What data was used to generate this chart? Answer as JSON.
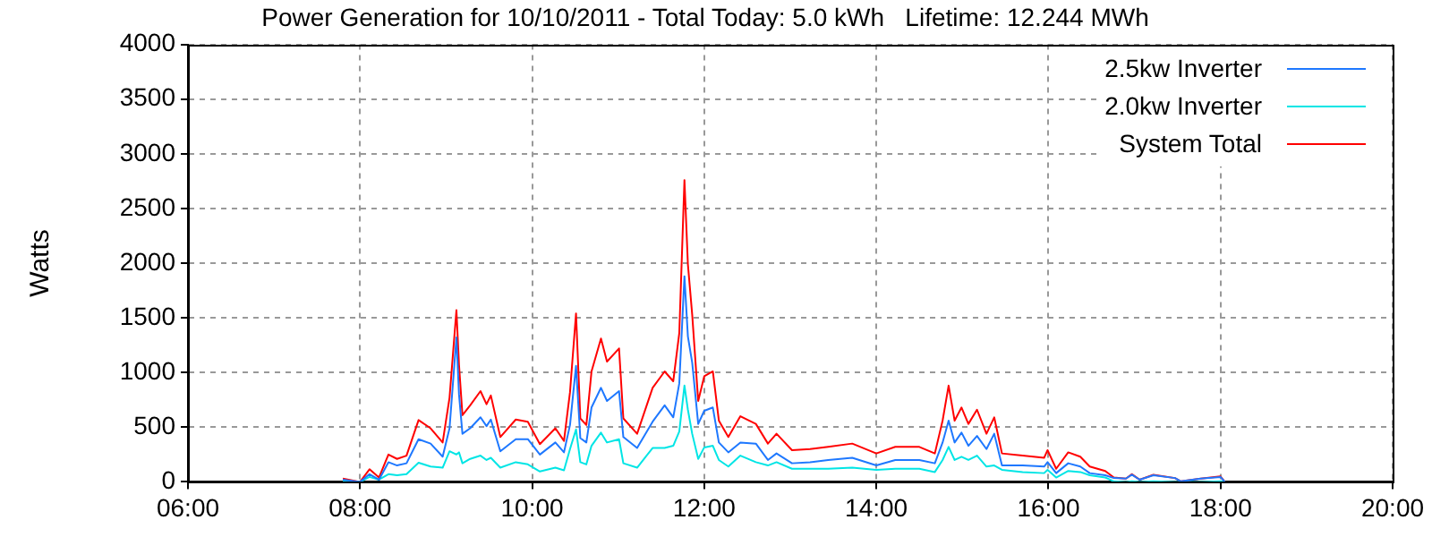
{
  "chart_data": {
    "type": "line",
    "title": "Power Generation for 10/10/2011 - Total Today: 5.0 kWh   Lifetime: 12.244 MWh",
    "ylabel": "Watts",
    "x": [
      7.8,
      8.0,
      8.11,
      8.22,
      8.33,
      8.43,
      8.54,
      8.68,
      8.82,
      8.96,
      9.04,
      9.12,
      9.15,
      9.19,
      9.28,
      9.4,
      9.47,
      9.52,
      9.63,
      9.81,
      9.95,
      10.09,
      10.27,
      10.37,
      10.44,
      10.51,
      10.56,
      10.63,
      10.69,
      10.8,
      10.87,
      11.01,
      11.06,
      11.22,
      11.4,
      11.54,
      11.64,
      11.71,
      11.77,
      11.81,
      11.86,
      11.93,
      12.0,
      12.1,
      12.17,
      12.28,
      12.42,
      12.6,
      12.74,
      12.84,
      13.02,
      13.23,
      13.44,
      13.72,
      14.0,
      14.22,
      14.5,
      14.68,
      14.77,
      14.84,
      14.91,
      14.99,
      15.07,
      15.17,
      15.28,
      15.37,
      15.46,
      15.7,
      15.95,
      15.99,
      16.09,
      16.23,
      16.37,
      16.48,
      16.66,
      16.76,
      16.9,
      16.97,
      17.06,
      17.22,
      17.47,
      17.54,
      17.77,
      18.0,
      18.05
    ],
    "series": [
      {
        "name": "2.5kw Inverter",
        "color": "#1e78ff",
        "values": [
          20,
          0,
          70,
          20,
          180,
          150,
          170,
          390,
          350,
          230,
          490,
          1320,
          800,
          440,
          490,
          590,
          510,
          570,
          280,
          390,
          390,
          250,
          360,
          270,
          520,
          1060,
          400,
          360,
          680,
          860,
          740,
          830,
          410,
          310,
          550,
          700,
          590,
          900,
          1880,
          1330,
          1090,
          530,
          650,
          680,
          360,
          270,
          360,
          350,
          200,
          260,
          170,
          180,
          200,
          220,
          150,
          200,
          200,
          170,
          360,
          560,
          360,
          450,
          330,
          420,
          300,
          440,
          150,
          150,
          140,
          180,
          80,
          170,
          140,
          80,
          60,
          35,
          30,
          65,
          20,
          60,
          35,
          5,
          30,
          45,
          0
        ]
      },
      {
        "name": "2.0kw Inverter",
        "color": "#00e5e5",
        "values": [
          10,
          0,
          45,
          20,
          70,
          60,
          70,
          175,
          140,
          130,
          280,
          250,
          270,
          170,
          210,
          240,
          200,
          220,
          130,
          180,
          160,
          95,
          130,
          105,
          300,
          480,
          180,
          160,
          330,
          450,
          360,
          390,
          170,
          130,
          310,
          310,
          330,
          460,
          880,
          660,
          440,
          210,
          315,
          330,
          200,
          140,
          240,
          180,
          150,
          180,
          120,
          120,
          120,
          130,
          110,
          120,
          120,
          90,
          200,
          320,
          200,
          230,
          200,
          240,
          140,
          150,
          110,
          90,
          80,
          110,
          40,
          100,
          90,
          60,
          40,
          5,
          0,
          5,
          0,
          5,
          0,
          0,
          0,
          5,
          0
        ]
      },
      {
        "name": "System Total",
        "color": "#ff0000",
        "values": [
          30,
          0,
          115,
          40,
          250,
          210,
          240,
          565,
          490,
          360,
          770,
          1570,
          1070,
          610,
          700,
          830,
          710,
          790,
          410,
          570,
          550,
          345,
          490,
          375,
          820,
          1540,
          580,
          520,
          1010,
          1310,
          1100,
          1220,
          580,
          440,
          860,
          1010,
          920,
          1360,
          2760,
          1990,
          1530,
          740,
          965,
          1010,
          560,
          410,
          600,
          530,
          350,
          440,
          290,
          300,
          320,
          350,
          260,
          320,
          320,
          260,
          560,
          880,
          560,
          680,
          530,
          660,
          440,
          590,
          260,
          240,
          220,
          290,
          120,
          270,
          230,
          140,
          100,
          40,
          30,
          70,
          20,
          65,
          35,
          5,
          30,
          50,
          0
        ]
      }
    ],
    "xlim": [
      6,
      20
    ],
    "xticks": [
      {
        "value": 6,
        "label": "06:00"
      },
      {
        "value": 8,
        "label": "08:00"
      },
      {
        "value": 10,
        "label": "10:00"
      },
      {
        "value": 12,
        "label": "12:00"
      },
      {
        "value": 14,
        "label": "14:00"
      },
      {
        "value": 16,
        "label": "16:00"
      },
      {
        "value": 18,
        "label": "18:00"
      },
      {
        "value": 20,
        "label": "20:00"
      }
    ],
    "ylim": [
      0,
      4000
    ],
    "yticks": [
      0,
      500,
      1000,
      1500,
      2000,
      2500,
      3000,
      3500,
      4000
    ],
    "grid": true,
    "legend": "top right"
  }
}
